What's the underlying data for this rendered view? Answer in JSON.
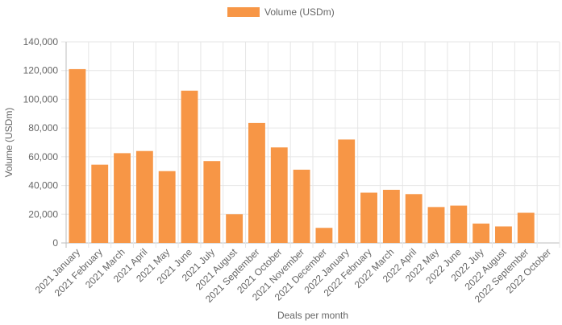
{
  "chart_data": {
    "type": "bar",
    "title": "",
    "xlabel": "Deals per month",
    "ylabel": "Volume (USDm)",
    "legend": {
      "position": "top-center"
    },
    "grid": true,
    "ylim": [
      0,
      140000
    ],
    "yticks": [
      0,
      20000,
      40000,
      60000,
      80000,
      100000,
      120000,
      140000
    ],
    "ytick_labels": [
      "0",
      "20,000",
      "40,000",
      "60,000",
      "80,000",
      "100,000",
      "120,000",
      "140,000"
    ],
    "categories": [
      "2021 January",
      "2021 February",
      "2021 March",
      "2021 April",
      "2021 May",
      "2021 June",
      "2021 July",
      "2021 August",
      "2021 September",
      "2021 October",
      "2021 November",
      "2021 December",
      "2022 January",
      "2022 February",
      "2022 March",
      "2022 April",
      "2022 May",
      "2022 June",
      "2022 July",
      "2022 August",
      "2022 September",
      "2022 October"
    ],
    "series": [
      {
        "name": "Volume (USDm)",
        "color": "#f79646",
        "values": [
          121000,
          54500,
          62500,
          64000,
          50000,
          106000,
          57000,
          20000,
          83500,
          66500,
          51000,
          10500,
          72000,
          35000,
          37000,
          34000,
          25000,
          26000,
          13500,
          11500,
          21000,
          0
        ]
      }
    ]
  }
}
